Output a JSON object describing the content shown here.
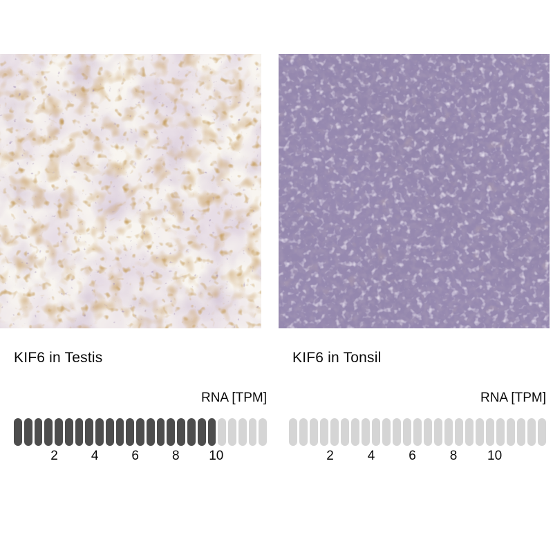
{
  "page": {
    "background": "#ffffff"
  },
  "colors": {
    "pill_filled": "#4d4d4d",
    "pill_empty": "#d5d5d5",
    "text": "#0a0a0a",
    "testis_background": "#f8f5f0",
    "testis_tissue": "#cdb8c9",
    "testis_dab_brown": "#96582b",
    "tonsil_base_purple": "#9487ad",
    "tonsil_dark_purple": "#594a73",
    "tonsil_light_spots": "#d6cee3"
  },
  "panels": [
    {
      "title": "KIF6 in Testis",
      "micrograph": {
        "name": "ihc-testis-micrograph",
        "alt": "Immunohistochemistry of testis: pale tissue with light purple seminiferous tubules and brown-stained round cells"
      },
      "bar": {
        "axis_label": "RNA [TPM]",
        "axis_max": 12.5,
        "tpm_per_segment": 0.5,
        "segments_total": 25,
        "segments_filled": 20,
        "value_tpm": 10,
        "ticks": [
          2,
          4,
          6,
          8,
          10
        ]
      }
    },
    {
      "title": "KIF6 in Tonsil",
      "micrograph": {
        "name": "ihc-tonsil-micrograph",
        "alt": "Immunohistochemistry of tonsil: dense mottled purple lymphoid tissue, no brown staining"
      },
      "bar": {
        "axis_label": "RNA [TPM]",
        "axis_max": 12.5,
        "tpm_per_segment": 0.5,
        "segments_total": 25,
        "segments_filled": 0,
        "value_tpm": 0,
        "ticks": [
          2,
          4,
          6,
          8,
          10
        ]
      }
    }
  ],
  "chart_data": [
    {
      "type": "bar",
      "title": "KIF6 in Testis",
      "xlabel": "RNA [TPM]",
      "x_ticks": [
        2,
        4,
        6,
        8,
        10
      ],
      "xlim": [
        0,
        12.5
      ],
      "value": 10,
      "segment_size_tpm": 0.5,
      "segments_total": 25,
      "segments_filled": 20,
      "filled_color": "#4d4d4d",
      "empty_color": "#d5d5d5",
      "legend_position": "none",
      "grid": false
    },
    {
      "type": "bar",
      "title": "KIF6 in Tonsil",
      "xlabel": "RNA [TPM]",
      "x_ticks": [
        2,
        4,
        6,
        8,
        10
      ],
      "xlim": [
        0,
        12.5
      ],
      "value": 0,
      "segment_size_tpm": 0.5,
      "segments_total": 25,
      "segments_filled": 0,
      "filled_color": "#4d4d4d",
      "empty_color": "#d5d5d5",
      "legend_position": "none",
      "grid": false
    }
  ]
}
